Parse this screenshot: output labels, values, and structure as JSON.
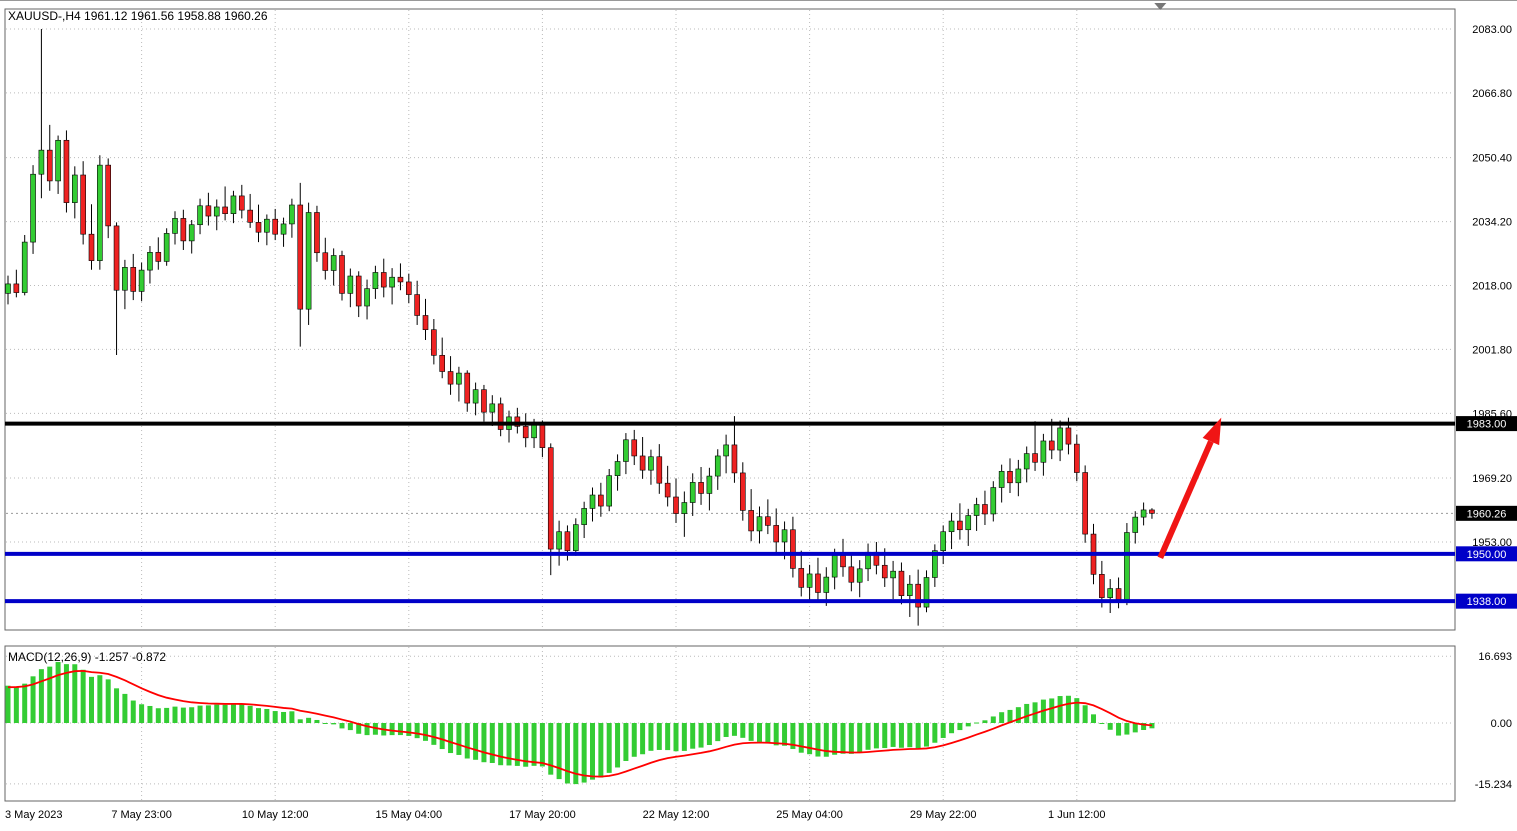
{
  "header": {
    "title": "XAUUSD-,H4 1961.12 1961.56 1958.88 1960.26",
    "symbol": "XAUUSD-",
    "timeframe": "H4",
    "ohlc": {
      "open": "1961.12",
      "high": "1961.56",
      "low": "1958.88",
      "close": "1960.26"
    }
  },
  "price_axis": {
    "ticks": [
      "2083.00",
      "2066.80",
      "2050.40",
      "2034.20",
      "2018.00",
      "2001.80",
      "1985.60",
      "1969.20",
      "1953.00"
    ],
    "tags": [
      {
        "label": "1983.00",
        "price": 1983.0,
        "bg": "#000000"
      },
      {
        "label": "1960.26",
        "price": 1960.26,
        "bg": "#000000"
      },
      {
        "label": "1950.00",
        "price": 1950.0,
        "bg": "#0000C8"
      },
      {
        "label": "1938.00",
        "price": 1938.0,
        "bg": "#0000C8"
      }
    ]
  },
  "time_axis": {
    "labels": [
      {
        "index": 0,
        "label": "3 May 2023"
      },
      {
        "index": 16,
        "label": "7 May 23:00"
      },
      {
        "index": 32,
        "label": "10 May 12:00"
      },
      {
        "index": 48,
        "label": "15 May 04:00"
      },
      {
        "index": 64,
        "label": "17 May 20:00"
      },
      {
        "index": 80,
        "label": "22 May 12:00"
      },
      {
        "index": 96,
        "label": "25 May 04:00"
      },
      {
        "index": 112,
        "label": "29 May 22:00"
      },
      {
        "index": 128,
        "label": "1 Jun 12:00"
      }
    ]
  },
  "chart_data": {
    "type": "candlestick",
    "symbol": "XAUUSD",
    "timeframe": "H4",
    "title": "XAUUSD-,H4 1961.12 1961.56 1958.88 1960.26",
    "ylim": [
      1931,
      2088
    ],
    "grid": true,
    "candles": [
      [
        2016.0,
        2020.5,
        2013.2,
        2018.4
      ],
      [
        2018.4,
        2022.0,
        2015.0,
        2016.2
      ],
      [
        2016.2,
        2030.8,
        2015.5,
        2029.0
      ],
      [
        2029.0,
        2048.5,
        2026.0,
        2046.2
      ],
      [
        2046.2,
        2083.0,
        2040.1,
        2052.3
      ],
      [
        2052.3,
        2058.7,
        2042.0,
        2044.5
      ],
      [
        2044.5,
        2056.0,
        2041.2,
        2054.8
      ],
      [
        2054.8,
        2057.3,
        2036.5,
        2039.0
      ],
      [
        2039.0,
        2048.2,
        2035.0,
        2046.0
      ],
      [
        2046.0,
        2049.5,
        2028.4,
        2031.0
      ],
      [
        2031.0,
        2038.6,
        2022.0,
        2024.3
      ],
      [
        2024.3,
        2051.0,
        2022.0,
        2048.5
      ],
      [
        2048.5,
        2050.2,
        2030.0,
        2033.1
      ],
      [
        2033.1,
        2034.0,
        2000.4,
        2016.8
      ],
      [
        2016.8,
        2024.5,
        2012.0,
        2022.6
      ],
      [
        2022.6,
        2026.0,
        2014.3,
        2016.5
      ],
      [
        2016.5,
        2023.8,
        2014.0,
        2021.9
      ],
      [
        2021.9,
        2028.0,
        2018.5,
        2026.4
      ],
      [
        2026.4,
        2030.2,
        2022.0,
        2024.1
      ],
      [
        2024.1,
        2032.5,
        2023.0,
        2031.2
      ],
      [
        2031.2,
        2036.8,
        2028.4,
        2035.0
      ],
      [
        2035.0,
        2037.2,
        2027.0,
        2029.3
      ],
      [
        2029.3,
        2034.6,
        2026.1,
        2033.4
      ],
      [
        2033.4,
        2040.0,
        2031.0,
        2038.2
      ],
      [
        2038.2,
        2041.5,
        2033.2,
        2035.6
      ],
      [
        2035.6,
        2039.8,
        2032.0,
        2037.9
      ],
      [
        2037.9,
        2043.1,
        2034.5,
        2036.2
      ],
      [
        2036.2,
        2042.0,
        2033.8,
        2040.7
      ],
      [
        2040.7,
        2043.5,
        2035.0,
        2037.1
      ],
      [
        2037.1,
        2041.2,
        2032.6,
        2034.0
      ],
      [
        2034.0,
        2038.5,
        2029.0,
        2031.5
      ],
      [
        2031.5,
        2036.0,
        2028.2,
        2034.8
      ],
      [
        2034.8,
        2037.4,
        2029.5,
        2031.0
      ],
      [
        2031.0,
        2035.2,
        2027.8,
        2033.6
      ],
      [
        2033.6,
        2040.0,
        2030.1,
        2038.4
      ],
      [
        2038.4,
        2044.0,
        2002.5,
        2012.0
      ],
      [
        2012.0,
        2039.0,
        2008.0,
        2036.5
      ],
      [
        2036.5,
        2038.2,
        2024.0,
        2026.3
      ],
      [
        2026.3,
        2030.1,
        2019.5,
        2021.8
      ],
      [
        2021.8,
        2027.4,
        2018.0,
        2025.6
      ],
      [
        2025.6,
        2026.8,
        2014.2,
        2016.0
      ],
      [
        2016.0,
        2022.3,
        2012.5,
        2020.4
      ],
      [
        2020.4,
        2021.6,
        2010.0,
        2012.8
      ],
      [
        2012.8,
        2019.5,
        2009.4,
        2017.2
      ],
      [
        2017.2,
        2023.0,
        2014.6,
        2021.3
      ],
      [
        2021.3,
        2024.8,
        2015.0,
        2017.6
      ],
      [
        2017.6,
        2022.4,
        2013.2,
        2020.1
      ],
      [
        2020.1,
        2023.6,
        2016.8,
        2018.9
      ],
      [
        2018.9,
        2021.0,
        2013.5,
        2015.7
      ],
      [
        2015.7,
        2019.2,
        2008.0,
        2010.4
      ],
      [
        2010.4,
        2014.6,
        2004.2,
        2006.8
      ],
      [
        2006.8,
        2009.5,
        1998.0,
        2000.3
      ],
      [
        2000.3,
        2004.8,
        1994.5,
        1996.2
      ],
      [
        1996.2,
        2000.1,
        1990.3,
        1993.0
      ],
      [
        1993.0,
        1997.4,
        1988.6,
        1995.8
      ],
      [
        1995.8,
        1996.5,
        1986.0,
        1988.2
      ],
      [
        1988.2,
        1993.4,
        1985.1,
        1991.6
      ],
      [
        1991.6,
        1992.8,
        1983.5,
        1985.9
      ],
      [
        1985.9,
        1990.2,
        1982.4,
        1988.0
      ],
      [
        1988.0,
        1989.6,
        1979.8,
        1981.5
      ],
      [
        1981.5,
        1986.3,
        1978.2,
        1984.7
      ],
      [
        1984.7,
        1987.0,
        1980.5,
        1982.3
      ],
      [
        1982.3,
        1985.6,
        1977.0,
        1979.4
      ],
      [
        1979.4,
        1984.2,
        1976.8,
        1982.6
      ],
      [
        1982.6,
        1983.8,
        1974.5,
        1976.9
      ],
      [
        1976.9,
        1978.0,
        1944.6,
        1951.2
      ],
      [
        1951.2,
        1958.4,
        1947.0,
        1955.6
      ],
      [
        1955.6,
        1957.2,
        1948.3,
        1950.8
      ],
      [
        1950.8,
        1959.0,
        1949.5,
        1957.4
      ],
      [
        1957.4,
        1963.2,
        1954.0,
        1961.5
      ],
      [
        1961.5,
        1966.8,
        1958.2,
        1964.9
      ],
      [
        1964.9,
        1968.0,
        1959.4,
        1962.1
      ],
      [
        1962.1,
        1971.5,
        1960.8,
        1969.8
      ],
      [
        1969.8,
        1975.2,
        1966.0,
        1973.4
      ],
      [
        1973.4,
        1980.6,
        1970.2,
        1978.9
      ],
      [
        1978.9,
        1981.4,
        1972.5,
        1974.8
      ],
      [
        1974.8,
        1979.6,
        1969.0,
        1971.2
      ],
      [
        1971.2,
        1976.4,
        1967.5,
        1974.6
      ],
      [
        1974.6,
        1977.8,
        1965.2,
        1967.9
      ],
      [
        1967.9,
        1972.3,
        1962.0,
        1964.4
      ],
      [
        1964.4,
        1969.1,
        1957.8,
        1960.2
      ],
      [
        1960.2,
        1965.8,
        1954.3,
        1963.0
      ],
      [
        1963.0,
        1970.4,
        1959.6,
        1968.1
      ],
      [
        1968.1,
        1972.0,
        1962.4,
        1965.3
      ],
      [
        1965.3,
        1971.8,
        1961.0,
        1969.7
      ],
      [
        1969.7,
        1976.5,
        1966.2,
        1974.8
      ],
      [
        1974.8,
        1980.2,
        1970.4,
        1977.6
      ],
      [
        1977.6,
        1984.9,
        1968.0,
        1970.5
      ],
      [
        1970.5,
        1973.2,
        1958.4,
        1961.0
      ],
      [
        1961.0,
        1966.4,
        1953.2,
        1955.8
      ],
      [
        1955.8,
        1962.0,
        1952.6,
        1959.4
      ],
      [
        1959.4,
        1963.8,
        1955.0,
        1957.2
      ],
      [
        1957.2,
        1961.5,
        1950.4,
        1953.0
      ],
      [
        1953.0,
        1958.2,
        1948.6,
        1956.1
      ],
      [
        1956.1,
        1959.4,
        1944.0,
        1946.3
      ],
      [
        1946.3,
        1950.8,
        1939.2,
        1941.5
      ],
      [
        1941.5,
        1947.2,
        1937.6,
        1944.9
      ],
      [
        1944.9,
        1949.0,
        1938.4,
        1940.2
      ],
      [
        1940.2,
        1946.6,
        1936.8,
        1944.1
      ],
      [
        1944.1,
        1951.3,
        1941.0,
        1949.6
      ],
      [
        1949.6,
        1953.8,
        1944.2,
        1946.7
      ],
      [
        1946.7,
        1950.2,
        1940.5,
        1942.8
      ],
      [
        1942.8,
        1948.4,
        1939.0,
        1946.2
      ],
      [
        1946.2,
        1952.6,
        1943.1,
        1950.4
      ],
      [
        1950.4,
        1953.0,
        1944.8,
        1947.1
      ],
      [
        1947.1,
        1951.4,
        1941.6,
        1943.9
      ],
      [
        1943.9,
        1948.2,
        1938.5,
        1945.6
      ],
      [
        1945.6,
        1947.8,
        1937.2,
        1939.4
      ],
      [
        1939.4,
        1944.6,
        1934.0,
        1942.3
      ],
      [
        1942.3,
        1946.0,
        1931.8,
        1936.5
      ],
      [
        1936.5,
        1945.8,
        1935.2,
        1944.0
      ],
      [
        1944.0,
        1952.4,
        1941.6,
        1950.8
      ],
      [
        1950.8,
        1957.2,
        1947.4,
        1955.6
      ],
      [
        1955.6,
        1960.4,
        1951.2,
        1958.3
      ],
      [
        1958.3,
        1962.8,
        1953.6,
        1956.1
      ],
      [
        1956.1,
        1961.4,
        1952.0,
        1959.7
      ],
      [
        1959.7,
        1964.2,
        1955.8,
        1962.5
      ],
      [
        1962.5,
        1966.0,
        1957.3,
        1960.1
      ],
      [
        1960.1,
        1968.4,
        1958.2,
        1966.8
      ],
      [
        1966.8,
        1972.6,
        1963.0,
        1970.9
      ],
      [
        1970.9,
        1974.2,
        1965.4,
        1968.0
      ],
      [
        1968.0,
        1973.8,
        1964.6,
        1971.5
      ],
      [
        1971.5,
        1977.2,
        1968.1,
        1975.4
      ],
      [
        1975.4,
        1983.6,
        1971.0,
        1973.2
      ],
      [
        1973.2,
        1980.4,
        1969.8,
        1978.6
      ],
      [
        1978.6,
        1984.2,
        1974.0,
        1976.3
      ],
      [
        1976.3,
        1983.8,
        1973.5,
        1981.9
      ],
      [
        1981.9,
        1984.5,
        1975.2,
        1977.8
      ],
      [
        1977.8,
        1980.2,
        1968.4,
        1970.6
      ],
      [
        1970.6,
        1972.4,
        1952.8,
        1955.0
      ],
      [
        1955.0,
        1957.6,
        1942.3,
        1944.8
      ],
      [
        1944.8,
        1948.2,
        1936.4,
        1938.9
      ],
      [
        1938.9,
        1943.6,
        1935.0,
        1941.2
      ],
      [
        1941.2,
        1944.0,
        1936.2,
        1938.4
      ],
      [
        1938.4,
        1957.8,
        1937.0,
        1955.4
      ],
      [
        1955.4,
        1960.8,
        1952.6,
        1959.3
      ],
      [
        1959.3,
        1963.0,
        1957.2,
        1961.12
      ],
      [
        1961.12,
        1961.56,
        1958.88,
        1960.26
      ]
    ],
    "levels": [
      {
        "price": 1983.0,
        "color": "#000000",
        "width": 4
      },
      {
        "price": 1950.0,
        "color": "#0000C8",
        "width": 4
      },
      {
        "price": 1938.0,
        "color": "#0000C8",
        "width": 4
      }
    ],
    "current_price": 1960.26,
    "annotation_arrow": {
      "from": {
        "index": 138,
        "price": 1949.0
      },
      "to": {
        "index": 145.3,
        "price": 1984.5
      }
    },
    "macd": {
      "label": "MACD(12,26,9) -1.257 -0.872",
      "params": [
        12,
        26,
        9
      ],
      "macd_value": -1.257,
      "signal_value": -0.872,
      "axis_ticks": [
        "16.693",
        "0.00",
        "-15.234"
      ]
    }
  },
  "colors": {
    "background": "#FFFFFF",
    "up": "#33CC33",
    "down": "#EE2222",
    "wick": "#000000",
    "grid": "#BBBBBB",
    "border": "#666666",
    "macd_histogram": "#33CC33",
    "macd_signal": "#FF0000",
    "arrow": "#F01515",
    "tag_text": "#FFFFFF",
    "axis_text": "#000000",
    "shift_marker": "#777777"
  }
}
